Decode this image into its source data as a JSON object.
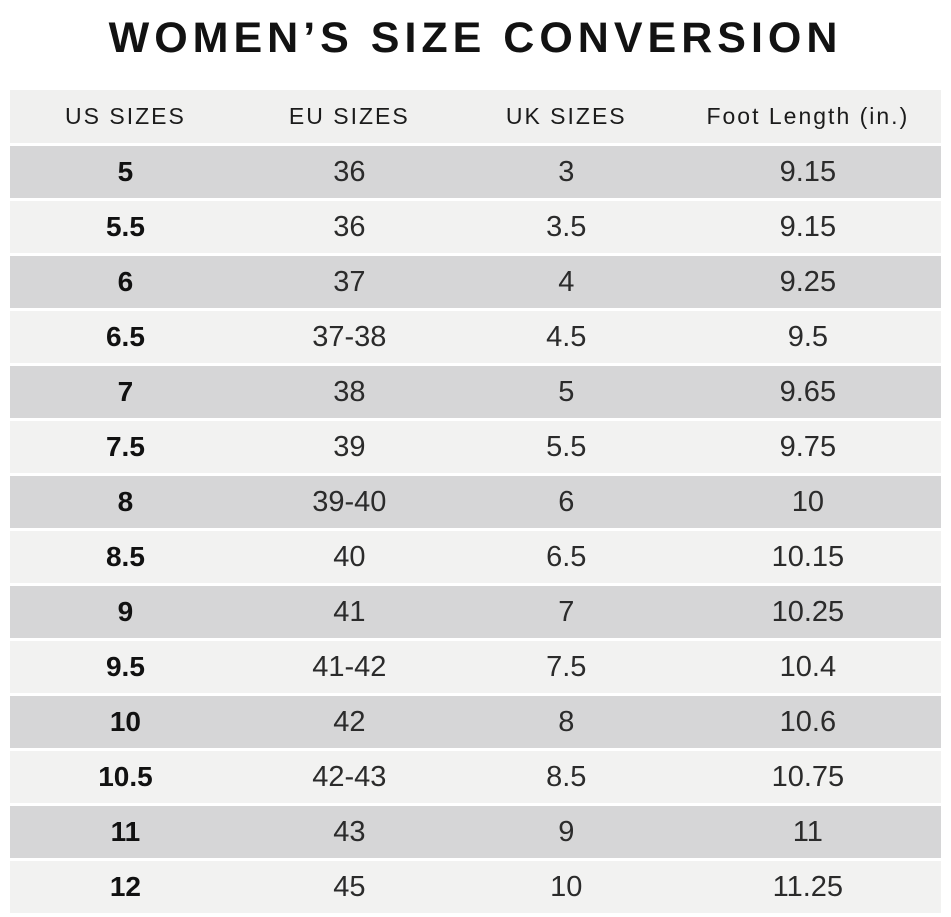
{
  "title": "WOMEN’S SIZE CONVERSION",
  "table": {
    "columns": [
      "US SIZES",
      "EU SIZES",
      "UK SIZES",
      "Foot Length (in.)"
    ],
    "rows": [
      {
        "us": "5",
        "eu": "36",
        "uk": "3",
        "foot": "9.15"
      },
      {
        "us": "5.5",
        "eu": "36",
        "uk": "3.5",
        "foot": "9.15"
      },
      {
        "us": "6",
        "eu": "37",
        "uk": "4",
        "foot": "9.25"
      },
      {
        "us": "6.5",
        "eu": "37-38",
        "uk": "4.5",
        "foot": "9.5"
      },
      {
        "us": "7",
        "eu": "38",
        "uk": "5",
        "foot": "9.65"
      },
      {
        "us": "7.5",
        "eu": "39",
        "uk": "5.5",
        "foot": "9.75"
      },
      {
        "us": "8",
        "eu": "39-40",
        "uk": "6",
        "foot": "10"
      },
      {
        "us": "8.5",
        "eu": "40",
        "uk": "6.5",
        "foot": "10.15"
      },
      {
        "us": "9",
        "eu": "41",
        "uk": "7",
        "foot": "10.25"
      },
      {
        "us": "9.5",
        "eu": "41-42",
        "uk": "7.5",
        "foot": "10.4"
      },
      {
        "us": "10",
        "eu": "42",
        "uk": "8",
        "foot": "10.6"
      },
      {
        "us": "10.5",
        "eu": "42-43",
        "uk": "8.5",
        "foot": "10.75"
      },
      {
        "us": "11",
        "eu": "43",
        "uk": "9",
        "foot": "11"
      },
      {
        "us": "12",
        "eu": "45",
        "uk": "10",
        "foot": "11.25"
      }
    ]
  },
  "colors": {
    "row_dark": "#d6d6d7",
    "row_light": "#f2f2f1",
    "header_bg": "#f0f0ef",
    "page_bg": "#ffffff",
    "text": "#1b1b1b"
  }
}
